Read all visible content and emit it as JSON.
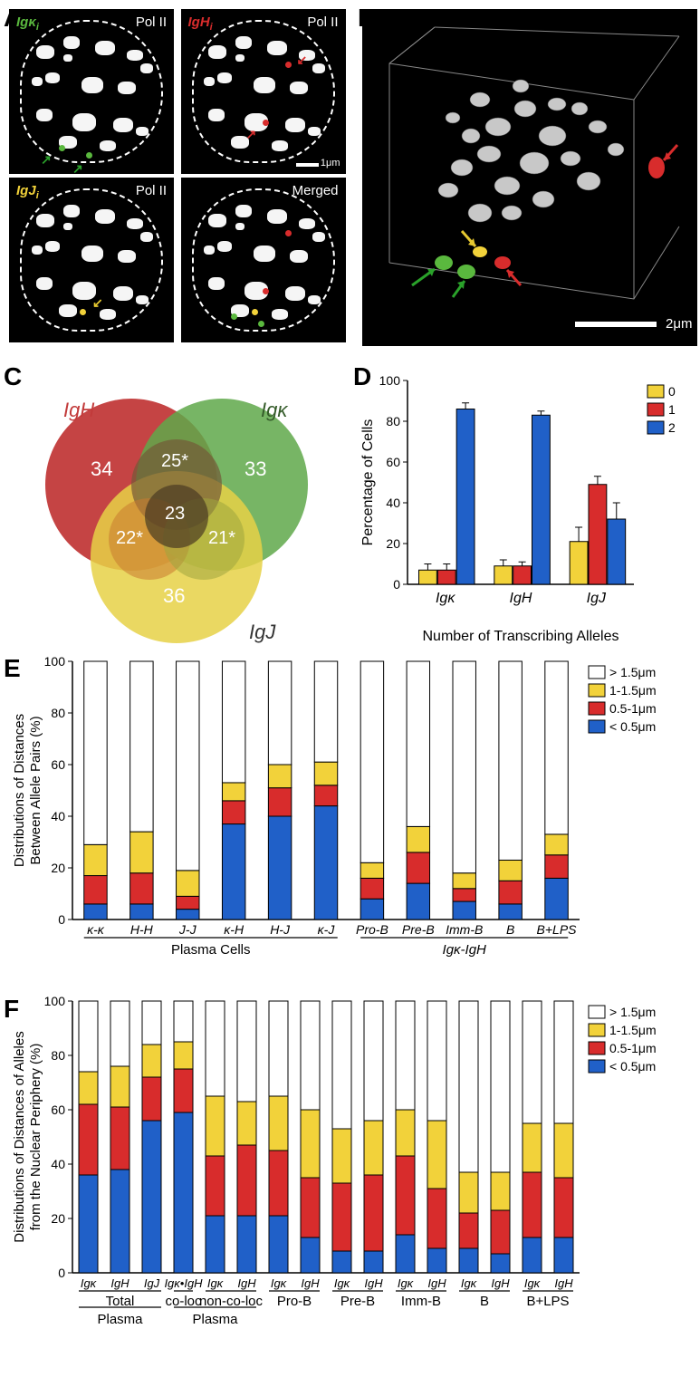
{
  "colors": {
    "igk": "#5ab83e",
    "igh": "#d82c2c",
    "igj": "#f2d23a",
    "blue": "#2060c8",
    "red": "#d82c2c",
    "yellow": "#f2d23a",
    "white": "#ffffff",
    "black": "#000000",
    "venn_red": "#c23a3a",
    "venn_green": "#5fa84a",
    "venn_yellow": "#e6d147",
    "venn_rg": "#735838",
    "venn_ry": "#c97a30",
    "venn_gy": "#9fa53e",
    "venn_all": "#4a3a22"
  },
  "panelA": {
    "label": "A",
    "images": [
      {
        "tl_label": "Igκ",
        "tl_sub": "i",
        "tl_color": "#5ab83e",
        "tr_label": "Pol II",
        "arrows_color": "#2aa22a"
      },
      {
        "tl_label": "IgH",
        "tl_sub": "i",
        "tl_color": "#d82c2c",
        "tr_label": "Pol II",
        "arrows_color": "#d82c2c"
      },
      {
        "tl_label": "IgJ",
        "tl_sub": "i",
        "tl_color": "#f2d23a",
        "tr_label": "Pol II",
        "arrows_color": "#f2d23a"
      },
      {
        "tl_label": "",
        "tl_sub": "",
        "tl_color": "",
        "tr_label": "Merged",
        "arrows_color": ""
      }
    ],
    "scale_label": "1μm"
  },
  "panelB": {
    "label": "B",
    "scale_label": "2μm"
  },
  "panelC": {
    "label": "C",
    "sets": [
      {
        "name": "IgH",
        "color": "#c23a3a",
        "only": 34
      },
      {
        "name": "Igκ",
        "color": "#5fa84a",
        "only": 33
      },
      {
        "name": "IgJ",
        "color": "#e6d147",
        "only": 36
      }
    ],
    "intersections": {
      "HK": "25*",
      "HJ": "22*",
      "KJ": "21*",
      "HKJ": 23
    }
  },
  "panelD": {
    "label": "D",
    "y_label": "Percentage of Cells",
    "x_label": "Number of Transcribing Alleles",
    "ylim": [
      0,
      100
    ],
    "ytick_step": 20,
    "legend": [
      {
        "label": "0",
        "color": "#f2d23a"
      },
      {
        "label": "1",
        "color": "#d82c2c"
      },
      {
        "label": "2",
        "color": "#2060c8"
      }
    ],
    "groups": [
      {
        "label": "Igκ",
        "bars": [
          {
            "v": 7,
            "e": 3,
            "c": "#f2d23a"
          },
          {
            "v": 7,
            "e": 3,
            "c": "#d82c2c"
          },
          {
            "v": 86,
            "e": 3,
            "c": "#2060c8"
          }
        ]
      },
      {
        "label": "IgH",
        "bars": [
          {
            "v": 9,
            "e": 3,
            "c": "#f2d23a"
          },
          {
            "v": 9,
            "e": 2,
            "c": "#d82c2c"
          },
          {
            "v": 83,
            "e": 2,
            "c": "#2060c8"
          }
        ]
      },
      {
        "label": "IgJ",
        "bars": [
          {
            "v": 21,
            "e": 7,
            "c": "#f2d23a"
          },
          {
            "v": 49,
            "e": 4,
            "c": "#d82c2c"
          },
          {
            "v": 32,
            "e": 8,
            "c": "#2060c8"
          }
        ]
      }
    ]
  },
  "panelE": {
    "label": "E",
    "y_label": "Distributions of Distances\nBetween Allele Pairs (%)",
    "ylim": [
      0,
      100
    ],
    "ytick_step": 20,
    "legend": [
      {
        "label": "> 1.5μm",
        "color": "#ffffff"
      },
      {
        "label": "1-1.5μm",
        "color": "#f2d23a"
      },
      {
        "label": "0.5-1μm",
        "color": "#d82c2c"
      },
      {
        "label": "< 0.5μm",
        "color": "#2060c8"
      }
    ],
    "bars": [
      {
        "x": "κ-κ",
        "stack": [
          6,
          11,
          12,
          71
        ]
      },
      {
        "x": "H-H",
        "stack": [
          6,
          12,
          16,
          66
        ]
      },
      {
        "x": "J-J",
        "stack": [
          4,
          5,
          10,
          81
        ]
      },
      {
        "x": "κ-H",
        "stack": [
          37,
          9,
          7,
          47
        ]
      },
      {
        "x": "H-J",
        "stack": [
          40,
          11,
          9,
          40
        ]
      },
      {
        "x": "κ-J",
        "stack": [
          44,
          8,
          9,
          39
        ]
      },
      {
        "x": "Pro-B",
        "stack": [
          8,
          8,
          6,
          78
        ]
      },
      {
        "x": "Pre-B",
        "stack": [
          14,
          12,
          10,
          64
        ]
      },
      {
        "x": "Imm-B",
        "stack": [
          7,
          5,
          6,
          82
        ]
      },
      {
        "x": "B",
        "stack": [
          6,
          9,
          8,
          77
        ]
      },
      {
        "x": "B+LPS",
        "stack": [
          16,
          9,
          8,
          67
        ]
      }
    ],
    "group_labels": [
      {
        "text": "Plasma Cells",
        "under": [
          0,
          5
        ]
      },
      {
        "text": "Igκ-IgH",
        "under": [
          6,
          10
        ],
        "italic": true
      }
    ]
  },
  "panelF": {
    "label": "F",
    "y_label": "Distributions of Distances of Alleles\nfrom the Nuclear Periphery (%)",
    "ylim": [
      0,
      100
    ],
    "ytick_step": 20,
    "legend": [
      {
        "label": "> 1.5μm",
        "color": "#ffffff"
      },
      {
        "label": "1-1.5μm",
        "color": "#f2d23a"
      },
      {
        "label": "0.5-1μm",
        "color": "#d82c2c"
      },
      {
        "label": "< 0.5μm",
        "color": "#2060c8"
      }
    ],
    "bars": [
      {
        "x": "Igκ",
        "stack": [
          36,
          26,
          12,
          26
        ]
      },
      {
        "x": "IgH",
        "stack": [
          38,
          23,
          15,
          24
        ]
      },
      {
        "x": "IgJ",
        "stack": [
          56,
          16,
          12,
          16
        ]
      },
      {
        "x": "Igκ•IgH",
        "stack": [
          59,
          16,
          10,
          15
        ]
      },
      {
        "x": "Igκ",
        "stack": [
          21,
          22,
          22,
          35
        ]
      },
      {
        "x": "IgH",
        "stack": [
          21,
          26,
          16,
          37
        ]
      },
      {
        "x": "Igκ",
        "stack": [
          21,
          24,
          20,
          35
        ]
      },
      {
        "x": "IgH",
        "stack": [
          13,
          22,
          25,
          40
        ]
      },
      {
        "x": "Igκ",
        "stack": [
          8,
          25,
          20,
          47
        ]
      },
      {
        "x": "IgH",
        "stack": [
          8,
          28,
          20,
          44
        ]
      },
      {
        "x": "Igκ",
        "stack": [
          14,
          29,
          17,
          40
        ]
      },
      {
        "x": "IgH",
        "stack": [
          9,
          22,
          25,
          44
        ]
      },
      {
        "x": "Igκ",
        "stack": [
          9,
          13,
          15,
          63
        ]
      },
      {
        "x": "IgH",
        "stack": [
          7,
          16,
          14,
          63
        ]
      },
      {
        "x": "Igκ",
        "stack": [
          13,
          24,
          18,
          45
        ]
      },
      {
        "x": "IgH",
        "stack": [
          13,
          22,
          20,
          45
        ]
      }
    ],
    "group_labels": [
      {
        "text": "Total",
        "span": [
          0,
          2
        ]
      },
      {
        "text": "co-loc",
        "span": [
          3,
          3
        ]
      },
      {
        "text": "non-co-loc",
        "span": [
          4,
          5
        ]
      },
      {
        "text": "Pro-B",
        "span": [
          6,
          7
        ]
      },
      {
        "text": "Pre-B",
        "span": [
          8,
          9
        ]
      },
      {
        "text": "Imm-B",
        "span": [
          10,
          11
        ]
      },
      {
        "text": "B",
        "span": [
          12,
          13
        ]
      },
      {
        "text": "B+LPS",
        "span": [
          14,
          15
        ]
      }
    ],
    "outer_labels": [
      {
        "text": "Plasma",
        "span": [
          0,
          2
        ]
      },
      {
        "text": "Plasma",
        "span": [
          3,
          5
        ]
      }
    ]
  }
}
